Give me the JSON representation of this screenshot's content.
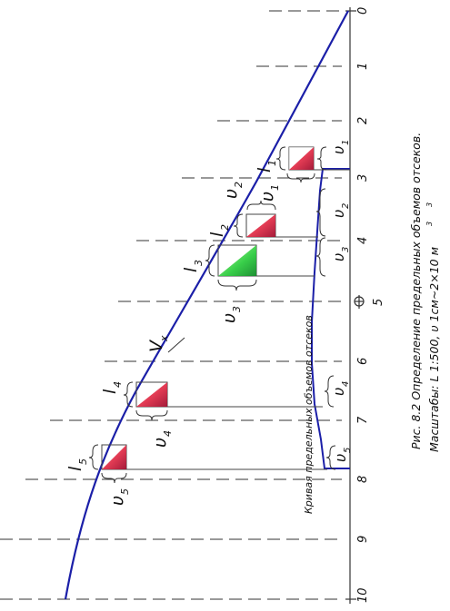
{
  "figure": {
    "caption": "Рис. 8.2 Определение предельных объемов отсеков.",
    "scale_note": "Масштабы: L 1:500,   υ  1см~2×10 м",
    "scale_exponent": "3",
    "scale_exponent2": "3",
    "colors": {
      "curve": "#1b1fa8",
      "lines": "#333333",
      "red_fill": "#e0304a",
      "green_fill": "#2ecc40",
      "background": "#ffffff"
    }
  },
  "axis": {
    "ticks": [
      "0",
      "1",
      "2",
      "3",
      "4",
      "5",
      "6",
      "7",
      "8",
      "9",
      "10"
    ],
    "midship_label": "5"
  },
  "curve_labels": {
    "vx_main": "V",
    "vx_sub": "x",
    "limit_curve": "Кривая предельных объемов отсеков"
  },
  "compartments": [
    {
      "l_main": "l",
      "l_sub": "1",
      "v_main": "υ",
      "v_sub": "1",
      "fill": "red"
    },
    {
      "l_main": "l",
      "l_sub": "2",
      "v_main": "υ",
      "v_sub": "2",
      "fill": "red"
    },
    {
      "l_main": "l",
      "l_sub": "3",
      "v_main": "υ",
      "v_sub": "3",
      "fill": "green"
    },
    {
      "l_main": "l",
      "l_sub": "4",
      "v_main": "υ",
      "v_sub": "4",
      "fill": "red"
    },
    {
      "l_main": "l",
      "l_sub": "5",
      "v_main": "υ",
      "v_sub": "5",
      "fill": "red"
    }
  ],
  "right_volumes": [
    {
      "main": "υ",
      "sub": "1"
    },
    {
      "main": "υ",
      "sub": "2"
    },
    {
      "main": "υ",
      "sub": "3"
    },
    {
      "main": "υ",
      "sub": "4"
    },
    {
      "main": "υ",
      "sub": "5"
    }
  ]
}
